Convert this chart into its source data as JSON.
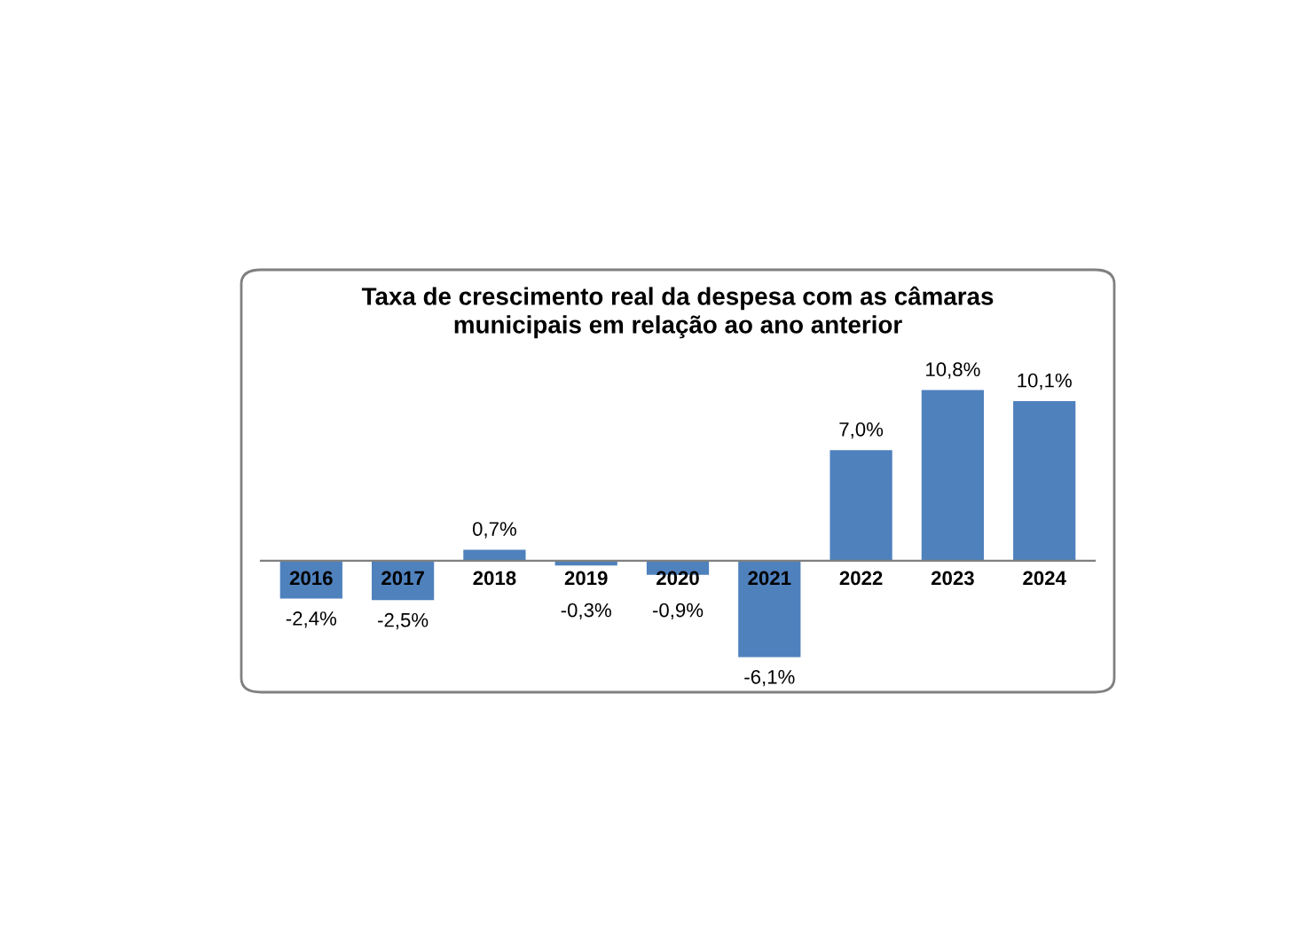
{
  "chart_data": {
    "type": "bar",
    "title": "Taxa de crescimento real da despesa com as câmaras\nmunicipais em relação ao ano anterior",
    "categories": [
      "2016",
      "2017",
      "2018",
      "2019",
      "2020",
      "2021",
      "2022",
      "2023",
      "2024"
    ],
    "values": [
      -2.4,
      -2.5,
      0.7,
      -0.3,
      -0.9,
      -6.1,
      7.0,
      10.8,
      10.1
    ],
    "value_labels": [
      "-2,4%",
      "-2,5%",
      "0,7%",
      "-0,3%",
      "-0,9%",
      "-6,1%",
      "7,0%",
      "10,8%",
      "10,1%"
    ],
    "color": "#4f81bd"
  }
}
